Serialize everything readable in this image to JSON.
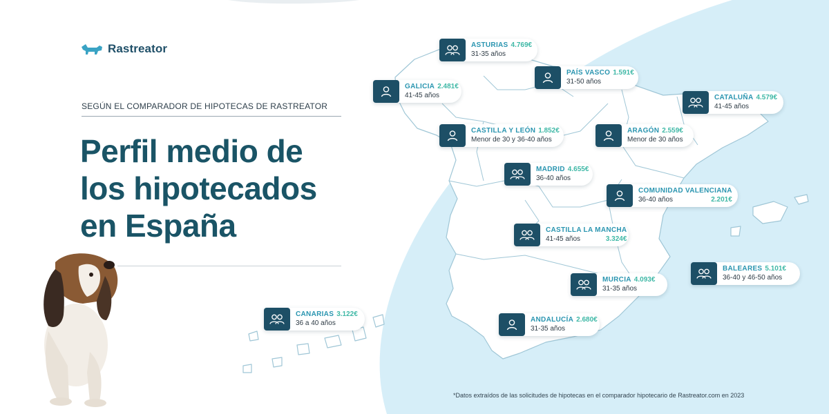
{
  "brand": {
    "name": "Rastreator"
  },
  "tagline": "SEGÚN EL COMPARADOR DE HIPOTECAS DE RASTREATOR",
  "title": {
    "line1": "Perfil medio de",
    "line2": "los hipotecados",
    "line3": "en España"
  },
  "footnote": "*Datos extraídos de las solicitudes de hipotecas en el comparador hipotecario de Rastreator.com en 2023",
  "colors": {
    "navy": "#1d4f66",
    "teal": "#2a95b0",
    "green": "#3fb8a6",
    "sky": "#d6eef8",
    "land": "#ffffff"
  },
  "regions": [
    {
      "id": "asturias",
      "icon": "people-icon",
      "name": "ASTURIAS",
      "amount": "4.769€",
      "age": "31-35 años"
    },
    {
      "id": "pais-vasco",
      "icon": "person-icon",
      "name": "PAÍS VASCO",
      "amount": "1.591€",
      "age": "31-50 años"
    },
    {
      "id": "galicia",
      "icon": "person-icon",
      "name": "GALICIA",
      "amount": "2.481€",
      "age": "41-45 años"
    },
    {
      "id": "cataluna",
      "icon": "people-icon",
      "name": "CATALUÑA",
      "amount": "4.579€",
      "age": "41-45 años"
    },
    {
      "id": "castilla-leon",
      "icon": "person-icon",
      "name": "CASTILLA Y LEÓN",
      "amount": "1.852€",
      "age": "Menor de 30 y 36-40 años"
    },
    {
      "id": "aragon",
      "icon": "person-icon",
      "name": "ARAGÓN",
      "amount": "2.559€",
      "age": "Menor de 30 años"
    },
    {
      "id": "madrid",
      "icon": "people-icon",
      "name": "MADRID",
      "amount": "4.655€",
      "age": "36-40 años"
    },
    {
      "id": "valenciana",
      "icon": "person-icon",
      "name": "COMUNIDAD VALENCIANA",
      "amount": "2.201€",
      "age": "36-40 años"
    },
    {
      "id": "castilla-mancha",
      "icon": "people-icon",
      "name": "CASTILLA LA MANCHA",
      "amount": "3.324€",
      "age": "41-45 años"
    },
    {
      "id": "baleares",
      "icon": "people-icon",
      "name": "BALEARES",
      "amount": "5.101€",
      "age": "36-40 y 46-50 años"
    },
    {
      "id": "murcia",
      "icon": "people-icon",
      "name": "MURCIA",
      "amount": "4.093€",
      "age": "31-35 años"
    },
    {
      "id": "canarias",
      "icon": "people-icon",
      "name": "CANARIAS",
      "amount": "3.122€",
      "age": "36 a 40 años"
    },
    {
      "id": "andalucia",
      "icon": "person-icon",
      "name": "ANDALUCÍA",
      "amount": "2.680€",
      "age": "31-35 años"
    }
  ]
}
